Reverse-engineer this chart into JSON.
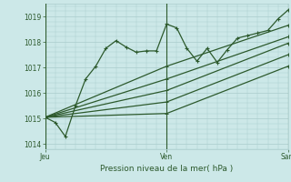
{
  "xlabel": "Pression niveau de la mer( hPa )",
  "bg_color": "#cce8e8",
  "grid_color": "#aacccc",
  "line_color": "#2d5a2d",
  "text_color": "#2d5a2d",
  "ylim": [
    1013.8,
    1019.5
  ],
  "yticks": [
    1014,
    1015,
    1016,
    1017,
    1018,
    1019
  ],
  "xlim": [
    0,
    96
  ],
  "x_ticks": [
    0,
    48,
    96
  ],
  "x_labels": [
    "Jeu",
    "Ven",
    "Sam"
  ],
  "lines": [
    [
      0,
      1015.05,
      4,
      1014.85,
      8,
      1014.3,
      12,
      1015.5,
      16,
      1016.55,
      20,
      1017.05,
      24,
      1017.75,
      28,
      1018.05,
      32,
      1017.8,
      36,
      1017.6,
      40,
      1017.65,
      44,
      1017.65,
      48,
      1018.7,
      52,
      1018.55,
      56,
      1017.75,
      60,
      1017.25,
      64,
      1017.75,
      68,
      1017.2,
      72,
      1017.7,
      76,
      1018.15,
      80,
      1018.25,
      84,
      1018.35,
      88,
      1018.45,
      92,
      1018.9,
      96,
      1019.25
    ],
    [
      0,
      1015.05,
      48,
      1017.05,
      96,
      1018.65
    ],
    [
      0,
      1015.05,
      48,
      1016.55,
      96,
      1018.2
    ],
    [
      0,
      1015.05,
      48,
      1016.1,
      96,
      1017.95
    ],
    [
      0,
      1015.05,
      48,
      1015.65,
      96,
      1017.5
    ],
    [
      0,
      1015.05,
      48,
      1015.2,
      96,
      1017.05
    ]
  ]
}
